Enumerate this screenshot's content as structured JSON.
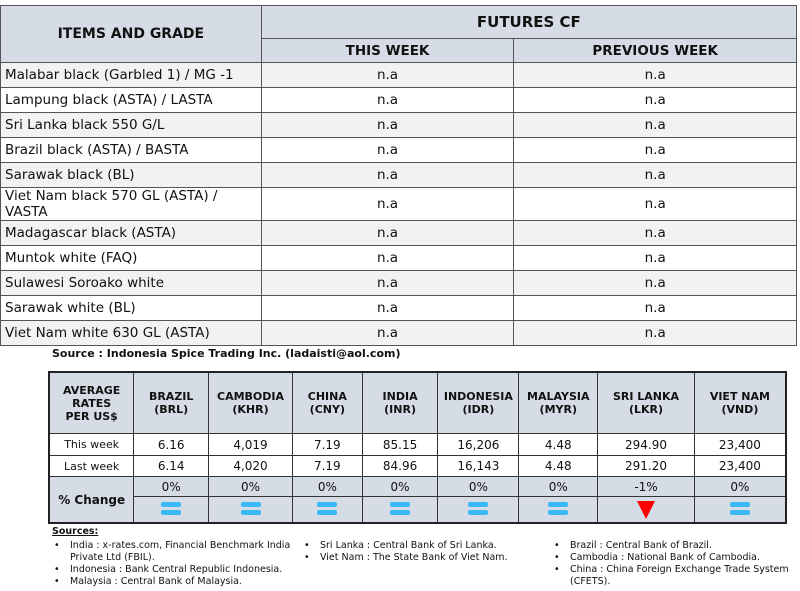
{
  "futures": {
    "col_items": "ITEMS AND GRADE",
    "col_group": "FUTURES CF",
    "col_this": "THIS WEEK",
    "col_prev": "PREVIOUS WEEK",
    "rows": [
      {
        "name": "Malabar black (Garbled 1) / MG -1",
        "this": "n.a",
        "prev": "n.a"
      },
      {
        "name": "Lampung black (ASTA) / LASTA",
        "this": "n.a",
        "prev": "n.a"
      },
      {
        "name": "Sri Lanka black 550 G/L",
        "this": "n.a",
        "prev": "n.a"
      },
      {
        "name": "Brazil black (ASTA) / BASTA",
        "this": "n.a",
        "prev": "n.a"
      },
      {
        "name": "Sarawak black (BL)",
        "this": "n.a",
        "prev": "n.a"
      },
      {
        "name": "Viet Nam black 570 GL (ASTA) / VASTA",
        "this": "n.a",
        "prev": "n.a"
      },
      {
        "name": "Madagascar black (ASTA)",
        "this": "n.a",
        "prev": "n.a"
      },
      {
        "name": "Muntok white (FAQ)",
        "this": "n.a",
        "prev": "n.a"
      },
      {
        "name": "Sulawesi Soroako white",
        "this": "n.a",
        "prev": "n.a"
      },
      {
        "name": "Sarawak  white (BL)",
        "this": "n.a",
        "prev": "n.a"
      },
      {
        "name": "Viet Nam white 630 GL (ASTA)",
        "this": "n.a",
        "prev": "n.a"
      }
    ]
  },
  "source": "Source : Indonesia Spice Trading Inc. (ladaisti@aol.com)",
  "rates": {
    "header": [
      "AVERAGE",
      "RATES",
      "PER US$"
    ],
    "row_this": "This week",
    "row_last": "Last week",
    "row_change": "% Change",
    "currencies": [
      {
        "country": "BRAZIL",
        "code": "(BRL)",
        "this": "6.16",
        "last": "6.14",
        "change": "0%",
        "trend": "equal"
      },
      {
        "country": "CAMBODIA",
        "code": "(KHR)",
        "this": "4,019",
        "last": "4,020",
        "change": "0%",
        "trend": "equal"
      },
      {
        "country": "CHINA",
        "code": "(CNY)",
        "this": "7.19",
        "last": "7.19",
        "change": "0%",
        "trend": "equal"
      },
      {
        "country": "INDIA",
        "code": "(INR)",
        "this": "85.15",
        "last": "84.96",
        "change": "0%",
        "trend": "equal"
      },
      {
        "country": "INDONESIA",
        "code": "(IDR)",
        "this": "16,206",
        "last": "16,143",
        "change": "0%",
        "trend": "equal"
      },
      {
        "country": "MALAYSIA",
        "code": "(MYR)",
        "this": "4.48",
        "last": "4.48",
        "change": "0%",
        "trend": "equal"
      },
      {
        "country": "SRI LANKA",
        "code": "(LKR)",
        "this": "294.90",
        "last": "291.20",
        "change": "-1%",
        "trend": "down"
      },
      {
        "country": "VIET NAM",
        "code": "(VND)",
        "this": "23,400",
        "last": "23,400",
        "change": "0%",
        "trend": "equal"
      }
    ],
    "colors": {
      "equal": "#3bb9f4",
      "down": "#ff0000",
      "header_bg": "#d6dce5"
    }
  },
  "sources": {
    "title": "Sources:",
    "col1": [
      "India : x-rates.com, Financial Benchmark India Private Ltd (FBIL).",
      "Indonesia : Bank Central Republic Indonesia.",
      "Malaysia : Central Bank of Malaysia."
    ],
    "col2": [
      "Sri Lanka : Central Bank of Sri Lanka.",
      "Viet Nam : The State Bank of Viet Nam."
    ],
    "col3": [
      "Brazil :  Central Bank of Brazil.",
      "Cambodia : National Bank of Cambodia.",
      "China : China Foreign Exchange Trade System (CFETS)."
    ]
  }
}
